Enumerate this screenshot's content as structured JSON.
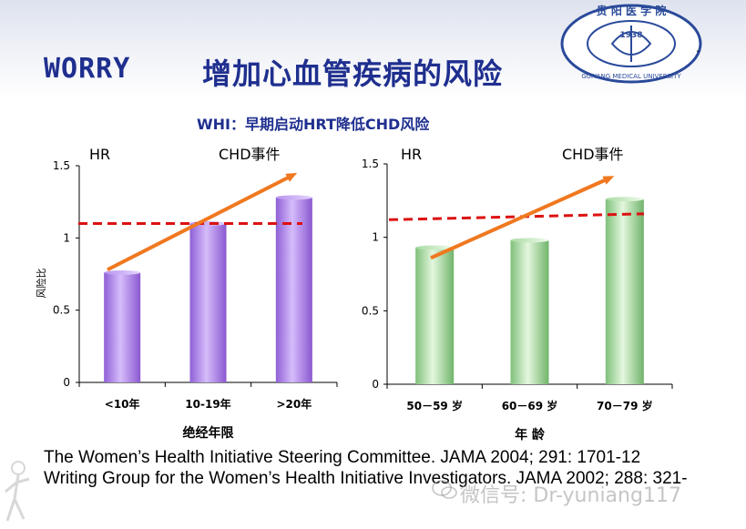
{
  "header": {
    "title_en": "WORRY",
    "title_cn": "增加心血管疾病的风险",
    "subtitle": "WHI：早期启动HRT降低CHD风险"
  },
  "logo": {
    "year": "1938",
    "ring_text": "贵阳医学院 GUIYANG MEDICAL UNIVERSITY"
  },
  "colors": {
    "title": "#1f2f8f",
    "bar_left": "#b58ff0",
    "bar_right": "#b8e6b0",
    "arrow": "#f07820",
    "dashed_line": "#dd1111"
  },
  "chart_data": [
    {
      "type": "bar",
      "title": "CHD事件",
      "hr_label": "HR",
      "ylabel": "风险比",
      "xlabel": "绝经年限",
      "categories": [
        "<10年",
        "10-19年",
        ">20年"
      ],
      "values": [
        0.76,
        1.1,
        1.28
      ],
      "ylim": [
        0,
        1.5
      ],
      "yticks": [
        "0",
        "0.5",
        "1",
        "1.5"
      ],
      "reference_line": 1.1,
      "trend": "increasing"
    },
    {
      "type": "bar",
      "title": "CHD事件",
      "hr_label": "HR",
      "ylabel": "",
      "xlabel": "年 龄",
      "categories": [
        "50－59 岁",
        "60－69 岁",
        "70－79 岁"
      ],
      "values": [
        0.93,
        0.98,
        1.26
      ],
      "ylim": [
        0,
        1.5
      ],
      "yticks": [
        "0",
        "0.5",
        "1",
        "1.5"
      ],
      "reference_line": 1.13,
      "trend": "increasing"
    }
  ],
  "references": [
    "The Women’s Health Initiative Steering Committee. JAMA 2004; 291: 1701-12",
    "Writing Group for the Women’s Health Initiative Investigators. JAMA 2002; 288: 321-"
  ],
  "watermark": "微信号: Dr-yuniang117"
}
